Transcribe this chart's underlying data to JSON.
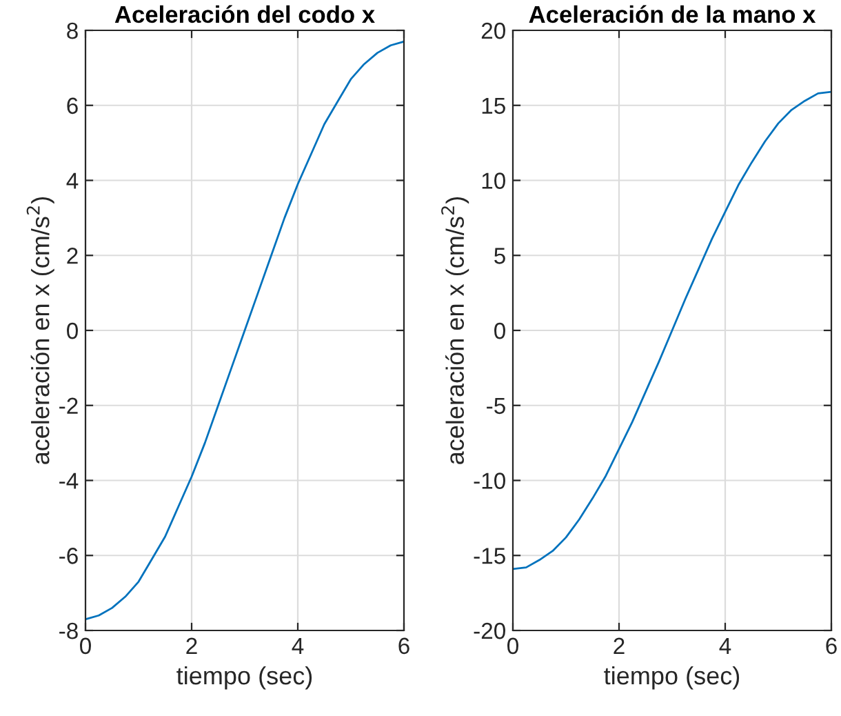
{
  "chart_data": [
    {
      "type": "line",
      "title": "Aceleración del codo x",
      "xlabel": "tiempo (sec)",
      "ylabel": "aceleración en x (cm/s$^{2}$)",
      "x": [
        0,
        0.25,
        0.5,
        0.75,
        1,
        1.25,
        1.5,
        1.75,
        2,
        2.25,
        2.5,
        2.75,
        3,
        3.25,
        3.5,
        3.75,
        4,
        4.25,
        4.5,
        4.75,
        5,
        5.25,
        5.5,
        5.75,
        6
      ],
      "series": [
        {
          "color": "#0072bd",
          "values": [
            -7.7,
            -7.6,
            -7.4,
            -7.1,
            -6.7,
            -6.1,
            -5.5,
            -4.7,
            -3.9,
            -3.0,
            -2.0,
            -1.0,
            0,
            1.0,
            2.0,
            3.0,
            3.9,
            4.7,
            5.5,
            6.1,
            6.7,
            7.1,
            7.4,
            7.6,
            7.7
          ]
        }
      ],
      "xlim": [
        0,
        6
      ],
      "xticks": [
        0,
        2,
        4,
        6
      ],
      "ylim": [
        -8,
        8
      ],
      "yticks": [
        -8,
        -6,
        -4,
        -2,
        0,
        2,
        4,
        6,
        8
      ],
      "grid": true,
      "legend": false
    },
    {
      "type": "line",
      "title": "Aceleración de la mano x",
      "xlabel": "tiempo (sec)",
      "ylabel": "aceleración en x (cm/s$^{2}$)",
      "x": [
        0,
        0.25,
        0.5,
        0.75,
        1,
        1.25,
        1.5,
        1.75,
        2,
        2.25,
        2.5,
        2.75,
        3,
        3.25,
        3.5,
        3.75,
        4,
        4.25,
        4.5,
        4.75,
        5,
        5.25,
        5.5,
        5.75,
        6
      ],
      "series": [
        {
          "color": "#0072bd",
          "values": [
            -15.9,
            -15.8,
            -15.3,
            -14.7,
            -13.8,
            -12.6,
            -11.2,
            -9.7,
            -7.9,
            -6.1,
            -4.1,
            -2.1,
            0,
            2.1,
            4.1,
            6.1,
            7.9,
            9.7,
            11.2,
            12.6,
            13.8,
            14.7,
            15.3,
            15.8,
            15.9
          ]
        }
      ],
      "xlim": [
        0,
        6
      ],
      "xticks": [
        0,
        2,
        4,
        6
      ],
      "ylim": [
        -20,
        20
      ],
      "yticks": [
        -20,
        -15,
        -10,
        -5,
        0,
        5,
        10,
        15,
        20
      ],
      "grid": true,
      "legend": false
    }
  ]
}
